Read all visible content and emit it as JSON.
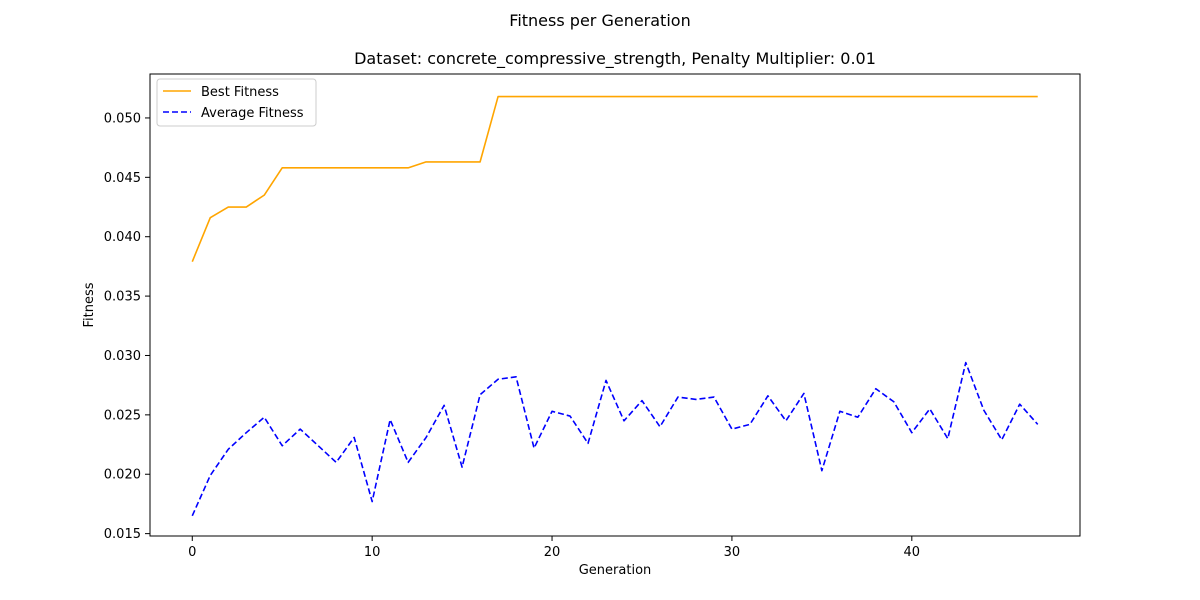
{
  "chart_data": {
    "type": "line",
    "suptitle": "Fitness per Generation",
    "title": "Dataset: concrete_compressive_strength, Penalty Multiplier: 0.01",
    "xlabel": "Generation",
    "ylabel": "Fitness",
    "xlim": [
      -2.35,
      49.35
    ],
    "ylim": [
      0.0148,
      0.0537
    ],
    "xticks": [
      0,
      10,
      20,
      30,
      40
    ],
    "xtick_labels": [
      "0",
      "10",
      "20",
      "30",
      "40"
    ],
    "yticks": [
      0.015,
      0.02,
      0.025,
      0.03,
      0.035,
      0.04,
      0.045,
      0.05
    ],
    "ytick_labels": [
      "0.015",
      "0.020",
      "0.025",
      "0.030",
      "0.035",
      "0.040",
      "0.045",
      "0.050"
    ],
    "grid": false,
    "legend": "top-left",
    "x": [
      0,
      1,
      2,
      3,
      4,
      5,
      6,
      7,
      8,
      9,
      10,
      11,
      12,
      13,
      14,
      15,
      16,
      17,
      18,
      19,
      20,
      21,
      22,
      23,
      24,
      25,
      26,
      27,
      28,
      29,
      30,
      31,
      32,
      33,
      34,
      35,
      36,
      37,
      38,
      39,
      40,
      41,
      42,
      43,
      44,
      45,
      46,
      47
    ],
    "series": [
      {
        "name": "Best Fitness",
        "color": "#FFA500",
        "style": "solid",
        "values": [
          0.0379,
          0.0416,
          0.0425,
          0.0425,
          0.0435,
          0.0458,
          0.0458,
          0.0458,
          0.0458,
          0.0458,
          0.0458,
          0.0458,
          0.0458,
          0.0463,
          0.0463,
          0.0463,
          0.0463,
          0.0518,
          0.0518,
          0.0518,
          0.0518,
          0.0518,
          0.0518,
          0.0518,
          0.0518,
          0.0518,
          0.0518,
          0.0518,
          0.0518,
          0.0518,
          0.0518,
          0.0518,
          0.0518,
          0.0518,
          0.0518,
          0.0518,
          0.0518,
          0.0518,
          0.0518,
          0.0518,
          0.0518,
          0.0518,
          0.0518,
          0.0518,
          0.0518,
          0.0518,
          0.0518,
          0.0518
        ]
      },
      {
        "name": "Average Fitness",
        "color": "#0000FF",
        "style": "dashed",
        "values": [
          0.0165,
          0.0199,
          0.0221,
          0.0235,
          0.0248,
          0.0224,
          0.0238,
          0.0224,
          0.021,
          0.0231,
          0.0177,
          0.0246,
          0.021,
          0.0231,
          0.0258,
          0.0206,
          0.0267,
          0.028,
          0.0282,
          0.0222,
          0.0253,
          0.0249,
          0.0226,
          0.0279,
          0.0245,
          0.0262,
          0.024,
          0.0265,
          0.0263,
          0.0265,
          0.0238,
          0.0242,
          0.0266,
          0.0245,
          0.0268,
          0.0203,
          0.0253,
          0.0248,
          0.0272,
          0.0261,
          0.0235,
          0.0255,
          0.023,
          0.0294,
          0.0254,
          0.0229,
          0.0259,
          0.0242
        ]
      }
    ]
  }
}
